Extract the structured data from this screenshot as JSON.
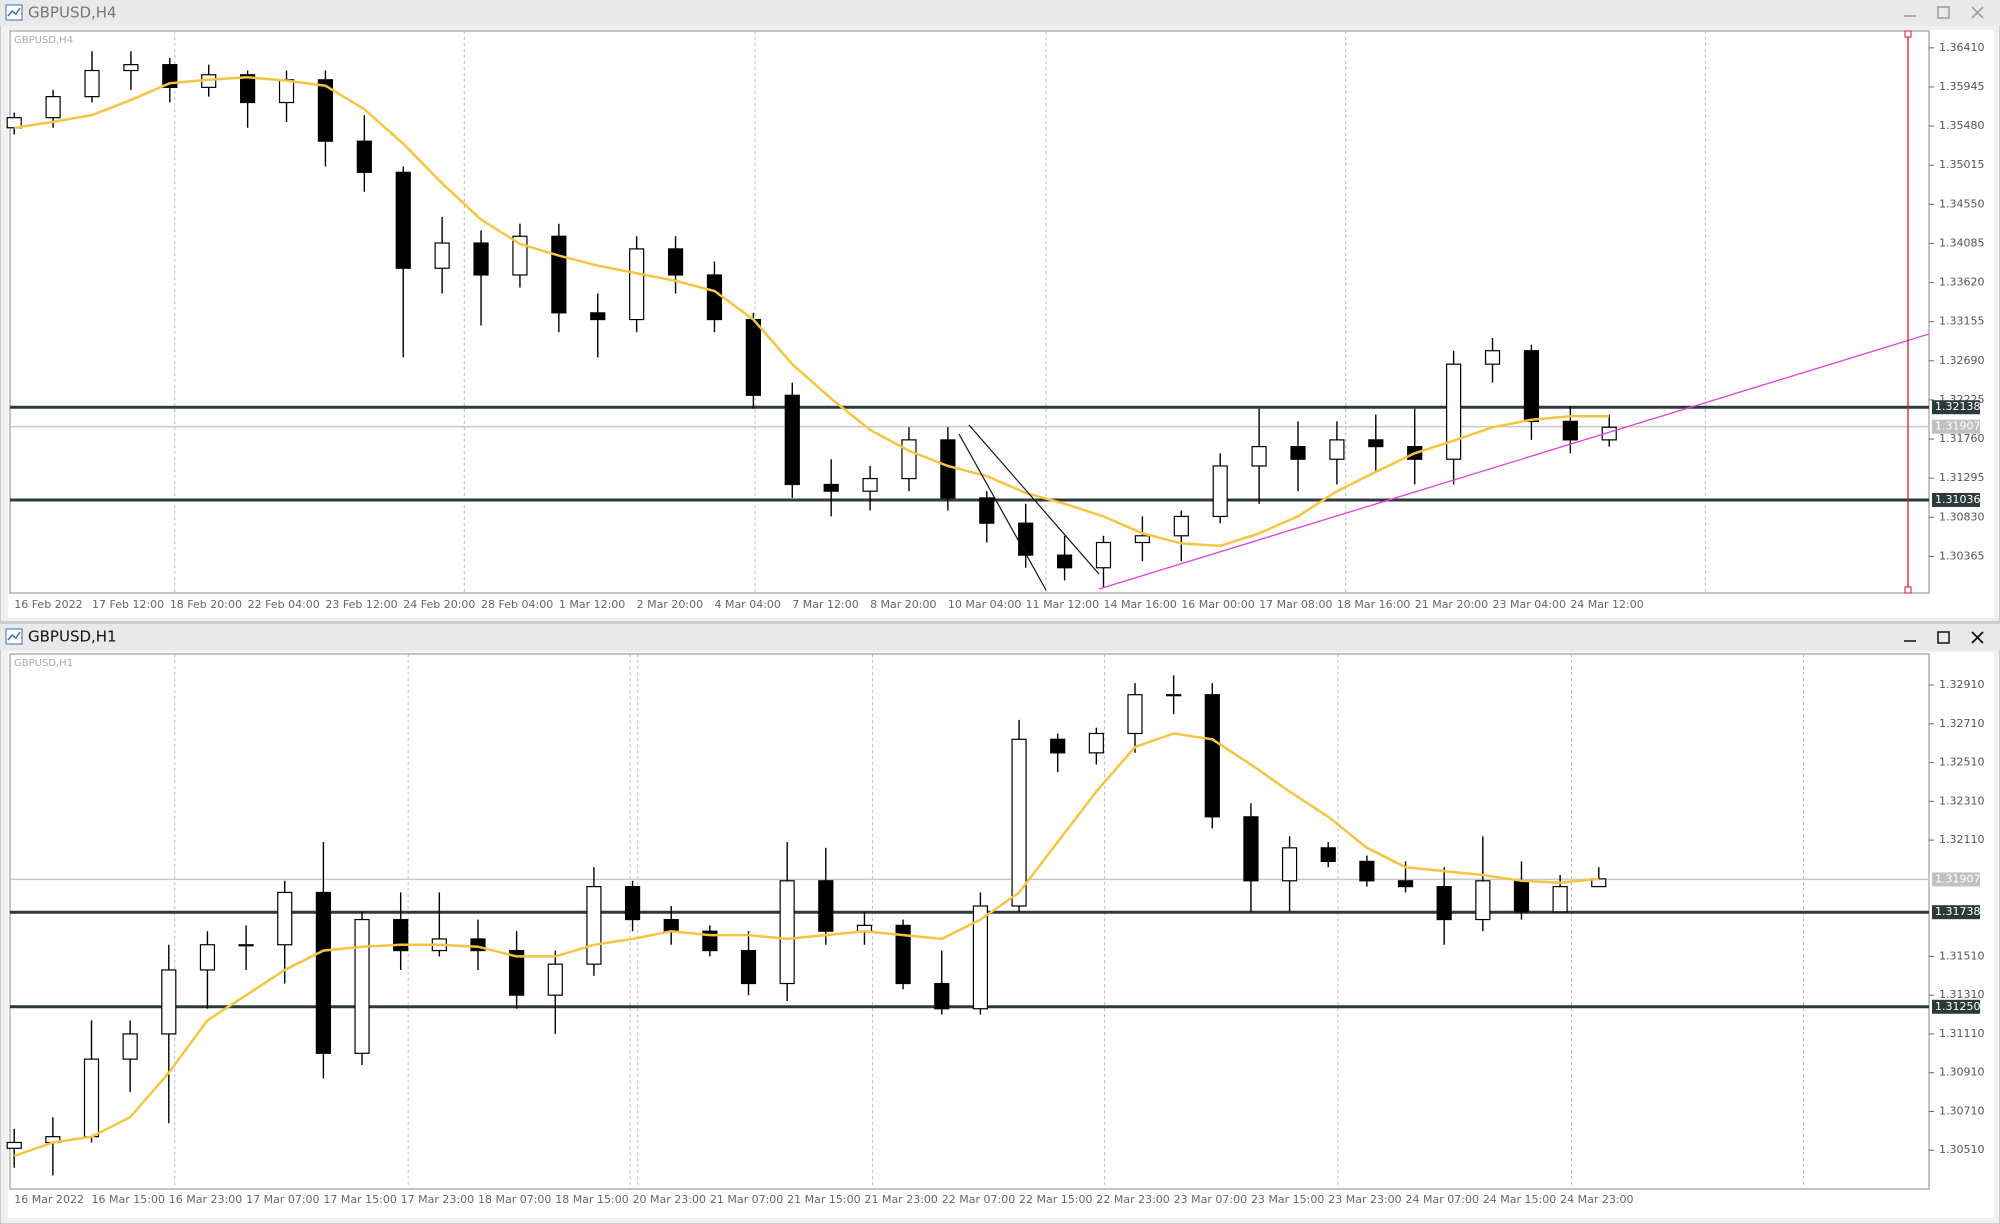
{
  "chart_data": [
    {
      "type": "candlestick",
      "window_title": "GBPUSD,H4",
      "symbol_label": "GBPUSD,H4",
      "categories": [
        "16 Feb 2022",
        null,
        "17 Feb 12:00",
        null,
        "18 Feb 20:00",
        null,
        "22 Feb 04:00",
        null,
        "23 Feb 12:00",
        null,
        "24 Feb 20:00",
        null,
        "28 Feb 04:00",
        null,
        "1 Mar 12:00",
        null,
        "2 Mar 20:00",
        null,
        "4 Mar 04:00",
        null,
        "7 Mar 12:00",
        null,
        "8 Mar 20:00",
        null,
        "10 Mar 04:00",
        null,
        "11 Mar 12:00",
        null,
        "14 Mar 16:00",
        null,
        "16 Mar 00:00",
        null,
        "17 Mar 08:00",
        null,
        "18 Mar 16:00",
        null,
        "21 Mar 20:00",
        null,
        "23 Mar 04:00",
        null,
        "24 Mar 12:00",
        null
      ],
      "open": [
        1.3546,
        1.3558,
        1.3583,
        1.3614,
        1.3621,
        1.3594,
        1.3609,
        1.3576,
        1.3603,
        1.353,
        1.3493,
        1.3379,
        1.3409,
        1.3371,
        1.3417,
        1.3326,
        1.3318,
        1.3402,
        1.3371,
        1.3318,
        1.3228,
        1.3122,
        1.3114,
        1.3129,
        1.3175,
        1.3106,
        1.3076,
        1.3038,
        1.3023,
        1.3053,
        1.3061,
        1.3084,
        1.3144,
        1.3167,
        1.3152,
        1.3175,
        1.3167,
        1.3152,
        1.3265,
        1.3281,
        1.3197,
        1.3175
      ],
      "high": [
        1.3564,
        1.3591,
        1.3637,
        1.3637,
        1.3629,
        1.3621,
        1.3614,
        1.3614,
        1.3614,
        1.3561,
        1.35,
        1.344,
        1.3424,
        1.3432,
        1.3432,
        1.3349,
        1.3417,
        1.3417,
        1.3387,
        1.3326,
        1.3243,
        1.3152,
        1.3144,
        1.319,
        1.319,
        1.3114,
        1.3099,
        1.3061,
        1.3061,
        1.3084,
        1.3091,
        1.3159,
        1.3212,
        1.3197,
        1.3197,
        1.3205,
        1.3212,
        1.3281,
        1.3296,
        1.3288,
        1.3215,
        1.3205
      ],
      "low": [
        1.3538,
        1.3546,
        1.3576,
        1.3591,
        1.3576,
        1.3583,
        1.3546,
        1.3553,
        1.35,
        1.347,
        1.3273,
        1.3349,
        1.3311,
        1.3356,
        1.3303,
        1.3273,
        1.3303,
        1.3349,
        1.3303,
        1.3212,
        1.3106,
        1.3084,
        1.3091,
        1.3114,
        1.3091,
        1.3053,
        1.3023,
        1.3008,
        1.3,
        1.3031,
        1.3031,
        1.3076,
        1.3099,
        1.3114,
        1.3122,
        1.3137,
        1.3122,
        1.3122,
        1.3243,
        1.3175,
        1.3159,
        1.3167
      ],
      "close": [
        1.3558,
        1.3583,
        1.3614,
        1.3621,
        1.3594,
        1.3609,
        1.3576,
        1.3603,
        1.353,
        1.3493,
        1.3379,
        1.3409,
        1.3371,
        1.3417,
        1.3326,
        1.3318,
        1.3402,
        1.3371,
        1.3318,
        1.3228,
        1.3122,
        1.3114,
        1.3129,
        1.3175,
        1.3106,
        1.3076,
        1.3038,
        1.3023,
        1.3053,
        1.3061,
        1.3084,
        1.3144,
        1.3167,
        1.3152,
        1.3175,
        1.3167,
        1.3152,
        1.3265,
        1.3281,
        1.3197,
        1.3175,
        1.319
      ],
      "ma": {
        "color": "#f5c542",
        "values": [
          1.3546,
          1.3553,
          1.3561,
          1.3579,
          1.3599,
          1.3603,
          1.3606,
          1.3602,
          1.3596,
          1.3568,
          1.3527,
          1.348,
          1.3437,
          1.3408,
          1.3394,
          1.3382,
          1.3373,
          1.3364,
          1.3352,
          1.3318,
          1.3265,
          1.3224,
          1.3187,
          1.3162,
          1.3144,
          1.3132,
          1.3112,
          1.3099,
          1.3084,
          1.3064,
          1.3052,
          1.3049,
          1.3064,
          1.3084,
          1.3114,
          1.3137,
          1.3159,
          1.3174,
          1.319,
          1.3199,
          1.3203,
          1.3203
        ]
      },
      "ylim": [
        1.2993,
        1.3661
      ],
      "yticks": [
        {
          "value": 1.3641,
          "label": "1.36410"
        },
        1.35945,
        {
          "value": 1.3548,
          "label": "1.35480"
        },
        1.35015,
        {
          "value": 1.3455,
          "label": "1.34550"
        },
        1.34085,
        {
          "value": 1.3362,
          "label": "1.33620"
        },
        1.33155,
        {
          "value": 1.3269,
          "label": "1.32690"
        },
        1.32225,
        {
          "value": 1.3176,
          "label": "1.31760"
        },
        1.31295,
        {
          "value": 1.3083,
          "label": "1.30830"
        },
        1.30365
      ],
      "levels": [
        1.32138,
        1.31036
      ],
      "bid": 1.31907
    },
    {
      "type": "candlestick",
      "window_title": "GBPUSD,H1",
      "symbol_label": "GBPUSD,H1",
      "categories": [
        "16 Mar 2022",
        null,
        "16 Mar 15:00",
        null,
        "16 Mar 23:00",
        null,
        "17 Mar 07:00",
        null,
        "17 Mar 15:00",
        null,
        "17 Mar 23:00",
        null,
        "18 Mar 07:00",
        null,
        "18 Mar 15:00",
        null,
        "20 Mar 23:00",
        null,
        "21 Mar 07:00",
        null,
        "21 Mar 15:00",
        null,
        "21 Mar 23:00",
        null,
        "22 Mar 07:00",
        null,
        "22 Mar 15:00",
        null,
        "22 Mar 23:00",
        null,
        "23 Mar 07:00",
        null,
        "23 Mar 15:00",
        null,
        "23 Mar 23:00",
        null,
        "24 Mar 07:00",
        null,
        "24 Mar 15:00",
        null,
        "24 Mar 23:00",
        null
      ],
      "open": [
        1.3052,
        1.3055,
        1.3058,
        1.3098,
        1.3111,
        1.3144,
        1.3157,
        1.3157,
        1.3184,
        1.3101,
        1.317,
        1.3154,
        1.316,
        1.3154,
        1.3131,
        1.3147,
        1.3187,
        1.317,
        1.3164,
        1.3154,
        1.3137,
        1.319,
        1.3164,
        1.3167,
        1.3137,
        1.3124,
        1.3177,
        1.3263,
        1.3256,
        1.3266,
        1.3286,
        1.3286,
        1.3223,
        1.319,
        1.3207,
        1.32,
        1.319,
        1.3187,
        1.317,
        1.319,
        1.3174,
        1.3187
      ],
      "high": [
        1.3062,
        1.3068,
        1.3118,
        1.3118,
        1.3157,
        1.3164,
        1.3167,
        1.319,
        1.321,
        1.3174,
        1.3184,
        1.3184,
        1.317,
        1.3164,
        1.3154,
        1.3197,
        1.319,
        1.3177,
        1.3167,
        1.3164,
        1.321,
        1.3207,
        1.3174,
        1.317,
        1.3154,
        1.3184,
        1.3273,
        1.3266,
        1.3269,
        1.3292,
        1.3296,
        1.3292,
        1.323,
        1.3213,
        1.321,
        1.3203,
        1.32,
        1.3197,
        1.3213,
        1.32,
        1.3193,
        1.3197
      ],
      "low": [
        1.3042,
        1.3038,
        1.3055,
        1.3081,
        1.3065,
        1.3124,
        1.3144,
        1.3137,
        1.3088,
        1.3095,
        1.3144,
        1.3151,
        1.3144,
        1.3124,
        1.3111,
        1.3141,
        1.3164,
        1.3157,
        1.3151,
        1.3131,
        1.3128,
        1.3157,
        1.3157,
        1.3134,
        1.3121,
        1.3121,
        1.3174,
        1.3246,
        1.325,
        1.3256,
        1.3276,
        1.3217,
        1.3174,
        1.3174,
        1.3197,
        1.3187,
        1.3184,
        1.3157,
        1.3164,
        1.317,
        1.3174,
        1.3187
      ],
      "close": [
        1.3055,
        1.3058,
        1.3098,
        1.3111,
        1.3144,
        1.3157,
        1.3157,
        1.3184,
        1.3101,
        1.317,
        1.3154,
        1.316,
        1.3154,
        1.3131,
        1.3147,
        1.3187,
        1.317,
        1.3164,
        1.3154,
        1.3137,
        1.319,
        1.3164,
        1.3167,
        1.3137,
        1.3124,
        1.3177,
        1.3263,
        1.3256,
        1.3266,
        1.3286,
        1.3286,
        1.3223,
        1.319,
        1.3207,
        1.32,
        1.319,
        1.3187,
        1.317,
        1.319,
        1.3174,
        1.3187,
        1.3191
      ],
      "ma": {
        "color": "#f5c542",
        "values": [
          1.3048,
          1.3055,
          1.3058,
          1.3068,
          1.3091,
          1.3118,
          1.3131,
          1.3144,
          1.3154,
          1.3156,
          1.3157,
          1.3157,
          1.3156,
          1.3151,
          1.3151,
          1.3157,
          1.316,
          1.3164,
          1.3162,
          1.3162,
          1.316,
          1.3162,
          1.3164,
          1.3162,
          1.316,
          1.317,
          1.3184,
          1.321,
          1.3236,
          1.3259,
          1.3266,
          1.3263,
          1.325,
          1.3236,
          1.3223,
          1.3207,
          1.3197,
          1.3195,
          1.3193,
          1.319,
          1.3189,
          1.3191
        ]
      },
      "ylim": [
        1.3031,
        1.3307
      ],
      "yticks": [
        {
          "value": 1.3291,
          "label": "1.32910"
        },
        {
          "value": 1.3271,
          "label": "1.32710"
        },
        {
          "value": 1.3251,
          "label": "1.32510"
        },
        {
          "value": 1.3231,
          "label": "1.32310"
        },
        {
          "value": 1.3211,
          "label": "1.32110"
        },
        {
          "value": 1.3151,
          "label": "1.31510"
        },
        {
          "value": 1.3131,
          "label": "1.31310"
        },
        {
          "value": 1.3111,
          "label": "1.31110"
        },
        {
          "value": 1.3091,
          "label": "1.30910"
        },
        {
          "value": 1.3071,
          "label": "1.30710"
        },
        {
          "value": 1.3051,
          "label": "1.30510"
        }
      ],
      "levels": [
        1.31738,
        {
          "value": 1.3125,
          "label": "1.31250"
        }
      ],
      "bid": 1.31907
    }
  ]
}
